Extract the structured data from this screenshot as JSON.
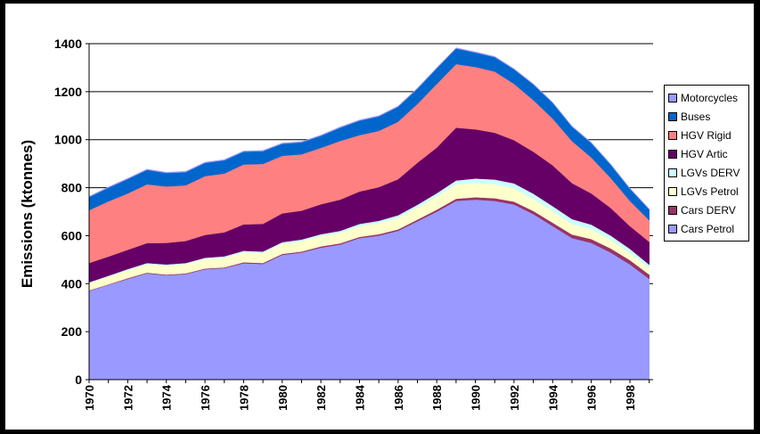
{
  "chart_data": {
    "type": "area",
    "stacked": true,
    "title": "",
    "xlabel": "",
    "ylabel": "Emissions (ktonnes)",
    "ylim": [
      0,
      1400
    ],
    "yticks": [
      "0",
      "200",
      "400",
      "600",
      "800",
      "1000",
      "1200",
      "1400"
    ],
    "xticks": [
      "1970",
      "1972",
      "1974",
      "1976",
      "1978",
      "1980",
      "1982",
      "1984",
      "1986",
      "1988",
      "1990",
      "1992",
      "1994",
      "1996",
      "1998"
    ],
    "grid": "horizontal",
    "legend_position": "right",
    "x": [
      1970,
      1971,
      1972,
      1973,
      1974,
      1975,
      1976,
      1977,
      1978,
      1979,
      1980,
      1981,
      1982,
      1983,
      1984,
      1985,
      1986,
      1987,
      1988,
      1989,
      1990,
      1991,
      1992,
      1993,
      1994,
      1995,
      1996,
      1997,
      1998,
      1999
    ],
    "series": [
      {
        "name": "Cars Petrol",
        "color": "#9999ff",
        "values": [
          370,
          395,
          420,
          443,
          435,
          440,
          460,
          465,
          485,
          482,
          520,
          530,
          550,
          563,
          590,
          600,
          620,
          660,
          700,
          745,
          750,
          745,
          730,
          690,
          640,
          590,
          570,
          530,
          480,
          420
        ]
      },
      {
        "name": "Cars DERV",
        "color": "#993366",
        "values": [
          2,
          2,
          3,
          3,
          3,
          3,
          3,
          3,
          4,
          4,
          4,
          4,
          5,
          5,
          5,
          6,
          6,
          7,
          8,
          9,
          10,
          11,
          12,
          13,
          14,
          15,
          16,
          17,
          18,
          18
        ]
      },
      {
        "name": "LGVs Petrol",
        "color": "#ffffcc",
        "values": [
          30,
          32,
          33,
          35,
          37,
          38,
          40,
          40,
          42,
          42,
          42,
          43,
          43,
          44,
          45,
          46,
          48,
          50,
          55,
          60,
          60,
          58,
          55,
          50,
          47,
          43,
          40,
          35,
          30,
          25
        ]
      },
      {
        "name": "LGVs DERV",
        "color": "#ccffff",
        "values": [
          4,
          4,
          5,
          5,
          5,
          5,
          5,
          6,
          6,
          6,
          7,
          7,
          8,
          8,
          9,
          10,
          11,
          12,
          14,
          16,
          18,
          20,
          21,
          22,
          22,
          21,
          20,
          19,
          17,
          16
        ]
      },
      {
        "name": "HGV Artic",
        "color": "#660066",
        "values": [
          80,
          80,
          80,
          83,
          90,
          92,
          95,
          100,
          110,
          115,
          120,
          120,
          125,
          130,
          135,
          140,
          150,
          175,
          190,
          220,
          205,
          195,
          180,
          175,
          170,
          150,
          130,
          115,
          95,
          95
        ]
      },
      {
        "name": "HGV Rigid",
        "color": "#ff8080",
        "values": [
          220,
          230,
          235,
          245,
          235,
          232,
          245,
          245,
          250,
          250,
          240,
          235,
          235,
          245,
          235,
          235,
          240,
          245,
          265,
          265,
          260,
          255,
          235,
          215,
          195,
          175,
          150,
          125,
          105,
          90
        ]
      },
      {
        "name": "Buses",
        "color": "#0066cc",
        "values": [
          55,
          57,
          60,
          60,
          56,
          55,
          55,
          55,
          53,
          53,
          50,
          50,
          50,
          55,
          60,
          60,
          62,
          63,
          65,
          65,
          60,
          60,
          60,
          65,
          65,
          60,
          60,
          55,
          50,
          45
        ]
      },
      {
        "name": "Motorcycles",
        "color": "#9999ff",
        "values": [
          3,
          3,
          3,
          3,
          3,
          3,
          3,
          3,
          3,
          3,
          3,
          3,
          3,
          3,
          3,
          3,
          3,
          3,
          3,
          3,
          3,
          3,
          3,
          3,
          3,
          3,
          3,
          3,
          3,
          3
        ]
      }
    ]
  }
}
